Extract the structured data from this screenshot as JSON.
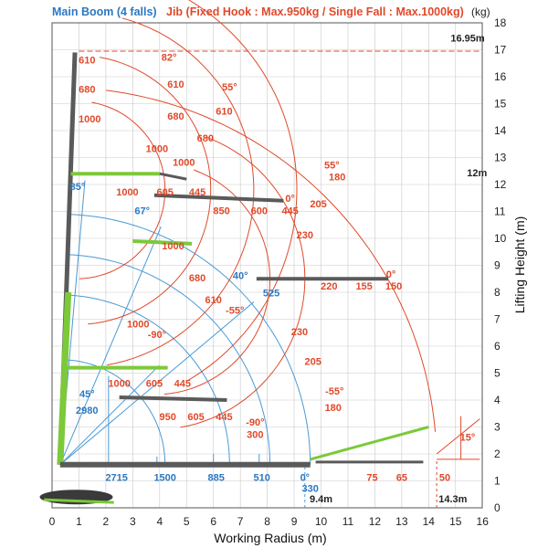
{
  "header": {
    "main_boom": "Main Boom (4 falls)",
    "jib": "Jib (Fixed Hook : Max.950kg / Single Fall : Max.1000kg)",
    "unit": "(kg)"
  },
  "axes": {
    "x_title": "Working Radius (m)",
    "y_title": "Lifting Height (m)",
    "x_ticks": [
      "0",
      "1",
      "2",
      "3",
      "4",
      "5",
      "6",
      "7",
      "8",
      "9",
      "10",
      "11",
      "12",
      "13",
      "14",
      "15",
      "16"
    ],
    "y_ticks": [
      "0",
      "1",
      "2",
      "3",
      "4",
      "5",
      "6",
      "7",
      "8",
      "9",
      "10",
      "11",
      "12",
      "13",
      "14",
      "15",
      "16",
      "17",
      "18"
    ]
  },
  "chart_data": {
    "type": "diagram",
    "xlim": [
      0,
      16
    ],
    "ylim": [
      0,
      18
    ],
    "blue_labels": [
      {
        "text": "85°",
        "x": 0.95,
        "y": 11.8
      },
      {
        "text": "67°",
        "x": 3.35,
        "y": 10.9
      },
      {
        "text": "40°",
        "x": 7.0,
        "y": 8.5
      },
      {
        "text": "525",
        "x": 8.15,
        "y": 7.85
      },
      {
        "text": "45°",
        "x": 1.3,
        "y": 4.1
      },
      {
        "text": "2980",
        "x": 1.3,
        "y": 3.5
      },
      {
        "text": "2715",
        "x": 2.4,
        "y": 1.0
      },
      {
        "text": "1500",
        "x": 4.2,
        "y": 1.0
      },
      {
        "text": "885",
        "x": 6.1,
        "y": 1.0
      },
      {
        "text": "510",
        "x": 7.8,
        "y": 1.0
      },
      {
        "text": "0°",
        "x": 9.4,
        "y": 1.0
      },
      {
        "text": "330",
        "x": 9.6,
        "y": 0.6
      }
    ],
    "red_labels": [
      {
        "text": "610",
        "x": 1.3,
        "y": 16.5
      },
      {
        "text": "680",
        "x": 1.3,
        "y": 15.4
      },
      {
        "text": "1000",
        "x": 1.4,
        "y": 14.3
      },
      {
        "text": "82°",
        "x": 4.35,
        "y": 16.6
      },
      {
        "text": "610",
        "x": 4.6,
        "y": 15.6
      },
      {
        "text": "680",
        "x": 4.6,
        "y": 14.4
      },
      {
        "text": "55°",
        "x": 6.6,
        "y": 15.5
      },
      {
        "text": "610",
        "x": 6.4,
        "y": 14.6
      },
      {
        "text": "680",
        "x": 5.7,
        "y": 13.6
      },
      {
        "text": "1000",
        "x": 3.9,
        "y": 13.2
      },
      {
        "text": "1000",
        "x": 4.9,
        "y": 12.7
      },
      {
        "text": "1000",
        "x": 2.8,
        "y": 11.6
      },
      {
        "text": "605",
        "x": 4.2,
        "y": 11.6
      },
      {
        "text": "445",
        "x": 5.4,
        "y": 11.6
      },
      {
        "text": "850",
        "x": 6.3,
        "y": 10.9
      },
      {
        "text": "600",
        "x": 7.7,
        "y": 10.9
      },
      {
        "text": "0°",
        "x": 8.85,
        "y": 11.35
      },
      {
        "text": "445",
        "x": 8.85,
        "y": 10.9
      },
      {
        "text": "55°",
        "x": 10.4,
        "y": 12.6
      },
      {
        "text": "180",
        "x": 10.6,
        "y": 12.15
      },
      {
        "text": "205",
        "x": 9.9,
        "y": 11.15
      },
      {
        "text": "230",
        "x": 9.4,
        "y": 10.0
      },
      {
        "text": "1000",
        "x": 4.5,
        "y": 9.6
      },
      {
        "text": "680",
        "x": 5.4,
        "y": 8.4
      },
      {
        "text": "610",
        "x": 6.0,
        "y": 7.6
      },
      {
        "text": "-55°",
        "x": 6.8,
        "y": 7.2
      },
      {
        "text": "1000",
        "x": 3.2,
        "y": 6.7
      },
      {
        "text": "-90°",
        "x": 3.9,
        "y": 6.3
      },
      {
        "text": "220",
        "x": 10.3,
        "y": 8.1
      },
      {
        "text": "155",
        "x": 11.6,
        "y": 8.1
      },
      {
        "text": "0°",
        "x": 12.6,
        "y": 8.55
      },
      {
        "text": "150",
        "x": 12.7,
        "y": 8.1
      },
      {
        "text": "230",
        "x": 9.2,
        "y": 6.4
      },
      {
        "text": "205",
        "x": 9.7,
        "y": 5.3
      },
      {
        "text": "-55°",
        "x": 10.5,
        "y": 4.2
      },
      {
        "text": "180",
        "x": 10.45,
        "y": 3.6
      },
      {
        "text": "1000",
        "x": 2.5,
        "y": 4.5
      },
      {
        "text": "605",
        "x": 3.8,
        "y": 4.5
      },
      {
        "text": "445",
        "x": 4.85,
        "y": 4.5
      },
      {
        "text": "950",
        "x": 4.3,
        "y": 3.25
      },
      {
        "text": "605",
        "x": 5.35,
        "y": 3.25
      },
      {
        "text": "445",
        "x": 6.4,
        "y": 3.25
      },
      {
        "text": "-90°",
        "x": 7.55,
        "y": 3.05
      },
      {
        "text": "300",
        "x": 7.55,
        "y": 2.6
      },
      {
        "text": "75",
        "x": 11.9,
        "y": 1.0
      },
      {
        "text": "65",
        "x": 13.0,
        "y": 1.0
      },
      {
        "text": "50",
        "x": 14.6,
        "y": 1.0
      },
      {
        "text": "15°",
        "x": 15.45,
        "y": 2.5
      }
    ],
    "black_labels": [
      {
        "text": "16.95m",
        "x": 15.45,
        "y": 17.3
      },
      {
        "text": "12m",
        "x": 15.8,
        "y": 12.3
      },
      {
        "text": "9.4m",
        "x": 10.0,
        "y": 0.2
      },
      {
        "text": "14.3m",
        "x": 14.9,
        "y": 0.2
      }
    ]
  }
}
